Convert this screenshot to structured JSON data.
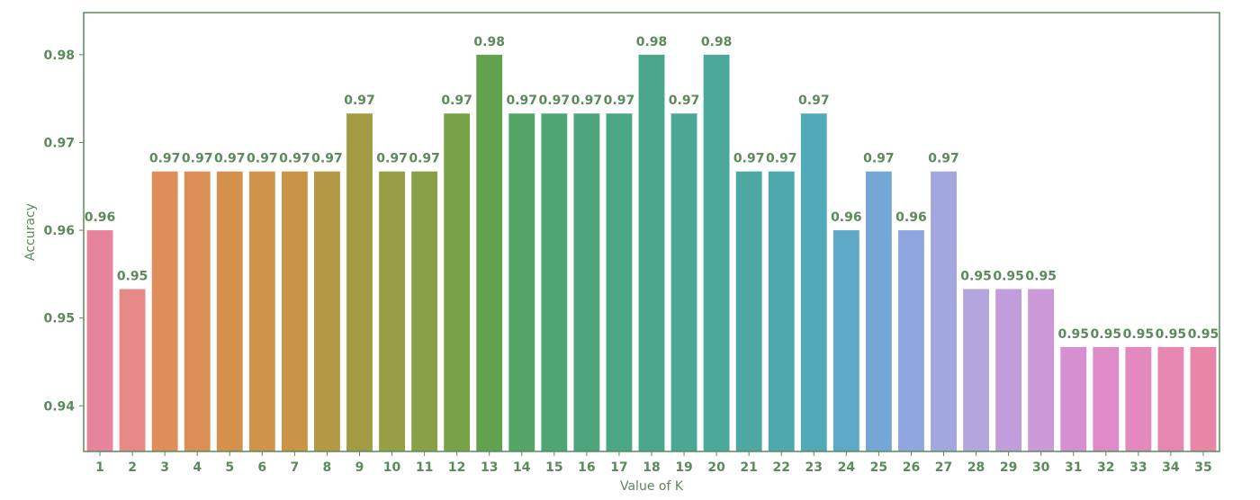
{
  "chart_data": {
    "type": "bar",
    "title": "",
    "xlabel": "Value of K",
    "ylabel": "Accuracy",
    "categories": [
      "1",
      "2",
      "3",
      "4",
      "5",
      "6",
      "7",
      "8",
      "9",
      "10",
      "11",
      "12",
      "13",
      "14",
      "15",
      "16",
      "17",
      "18",
      "19",
      "20",
      "21",
      "22",
      "23",
      "24",
      "25",
      "26",
      "27",
      "28",
      "29",
      "30",
      "31",
      "32",
      "33",
      "34",
      "35"
    ],
    "values": [
      0.96,
      0.9533,
      0.9667,
      0.9667,
      0.9667,
      0.9667,
      0.9667,
      0.9667,
      0.9733,
      0.9667,
      0.9667,
      0.9733,
      0.98,
      0.9733,
      0.9733,
      0.9733,
      0.9733,
      0.98,
      0.9733,
      0.98,
      0.9667,
      0.9667,
      0.9733,
      0.96,
      0.9667,
      0.96,
      0.9667,
      0.9533,
      0.9533,
      0.9533,
      0.9467,
      0.9467,
      0.9467,
      0.9467,
      0.9467
    ],
    "data_labels": [
      "0.96",
      "0.95",
      "0.97",
      "0.97",
      "0.97",
      "0.97",
      "0.97",
      "0.97",
      "0.97",
      "0.97",
      "0.97",
      "0.97",
      "0.98",
      "0.97",
      "0.97",
      "0.97",
      "0.97",
      "0.98",
      "0.97",
      "0.98",
      "0.97",
      "0.97",
      "0.97",
      "0.96",
      "0.97",
      "0.96",
      "0.97",
      "0.95",
      "0.95",
      "0.95",
      "0.95",
      "0.95",
      "0.95",
      "0.95",
      "0.95"
    ],
    "ylim": [
      0.9348,
      0.9848
    ],
    "yticks": [
      0.94,
      0.95,
      0.96,
      0.97,
      0.98
    ],
    "ytick_labels": [
      "0.94",
      "0.95",
      "0.96",
      "0.97",
      "0.98"
    ],
    "grid": false,
    "legend": "none",
    "colors": [
      "#e7839b",
      "#e78a87",
      "#df8d5b",
      "#d98f55",
      "#d4914d",
      "#d0934a",
      "#c99445",
      "#b59845",
      "#a29b44",
      "#989e45",
      "#8aa046",
      "#78a247",
      "#62a24f",
      "#54a466",
      "#50a575",
      "#4da57e",
      "#4ba684",
      "#4aa78c",
      "#4ba793",
      "#4ba89b",
      "#4da8a3",
      "#4fa9ac",
      "#52aab8",
      "#5da9c7",
      "#74a7d6",
      "#8fa7de",
      "#a3a7e0",
      "#b3a5de",
      "#c19edb",
      "#cc98d7",
      "#d690d1",
      "#de8bc8",
      "#e289bd",
      "#e587b1",
      "#e786a6"
    ],
    "axis_color": "#5b8a5b",
    "text_color": "#5b8a5b"
  }
}
